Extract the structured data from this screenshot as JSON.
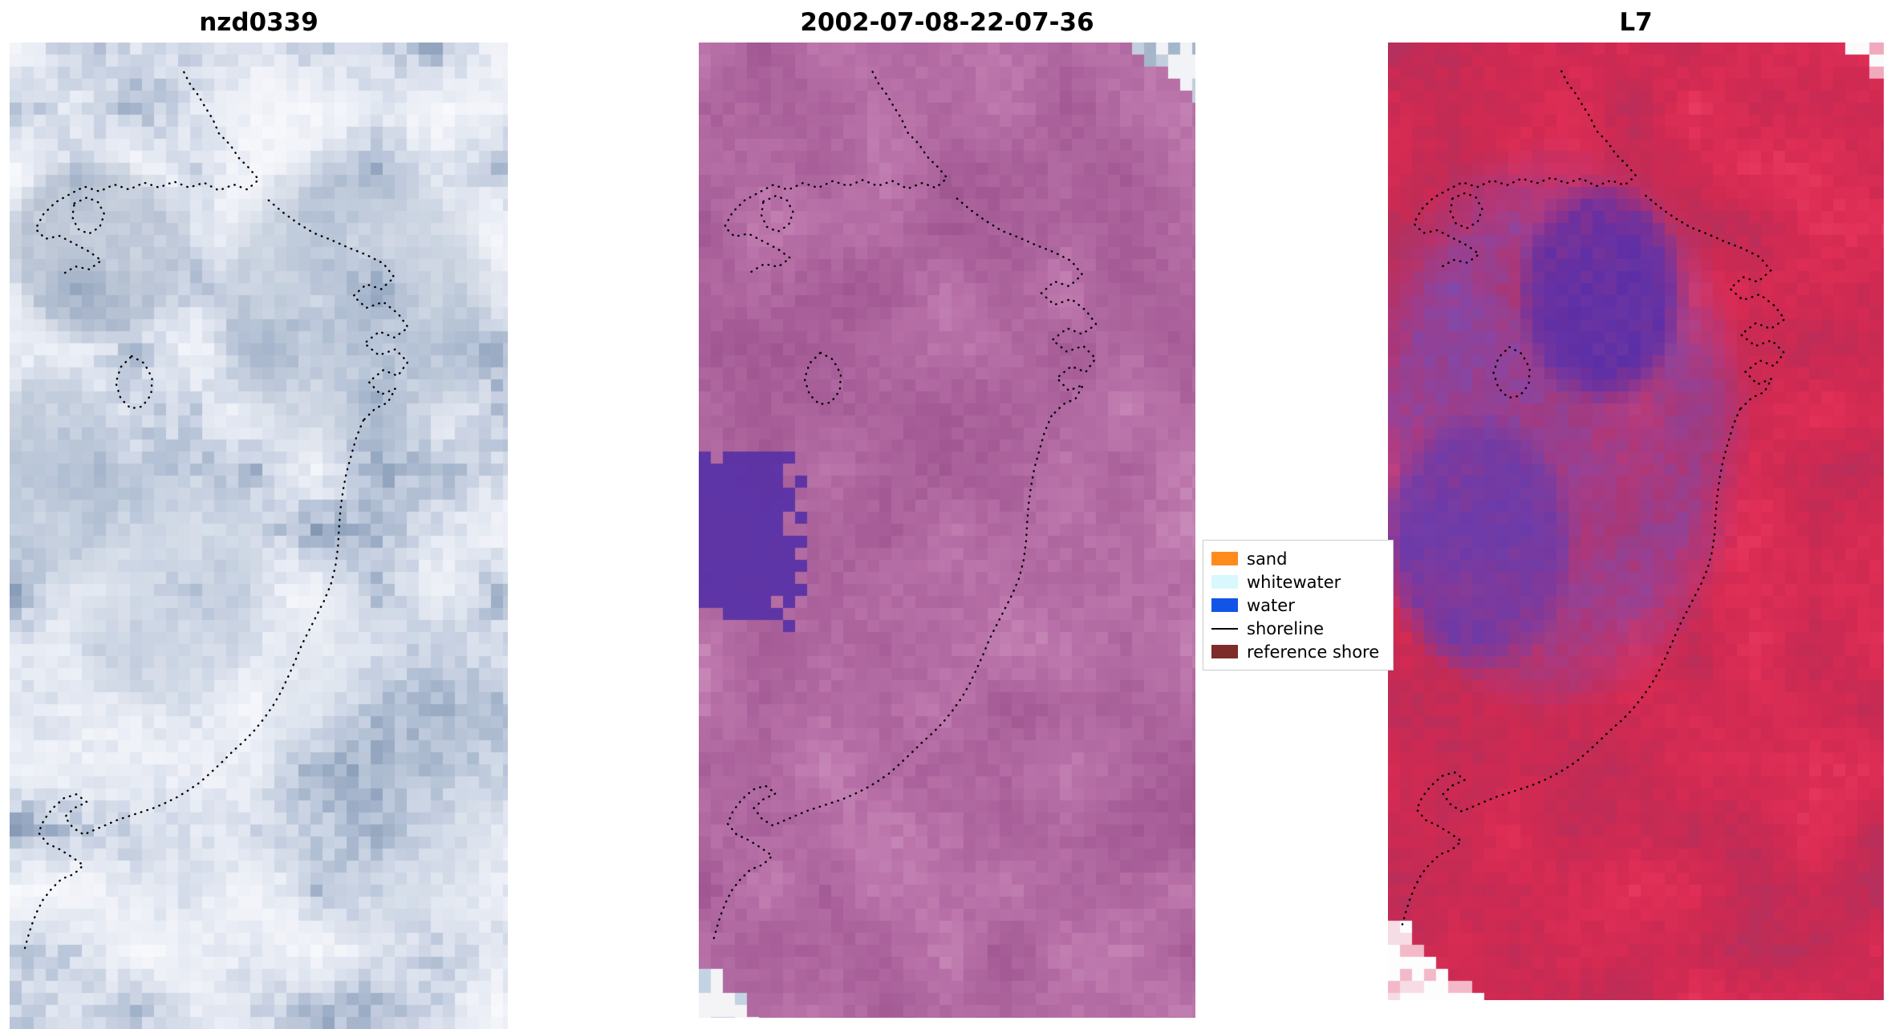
{
  "figure": {
    "background": "#ffffff"
  },
  "chart_data": [
    {
      "type": "heatmap",
      "subtype": "satellite-image",
      "title": "nzd0339",
      "description": "True-colour pixelated satellite tile: pale cloud and sand tones with blue-grey water patches, dotted detected shoreline overlaid",
      "seed": 101,
      "gamma": 1.55,
      "jitter": 0.26,
      "palette": [
        "#f8f9fc",
        "#eceff6",
        "#dde3ee",
        "#c8d1e2",
        "#aebcd1",
        "#93a5bf",
        "#7b90ac"
      ],
      "features": [
        {
          "kind": "ellipse",
          "cx": 0.17,
          "cy": 0.21,
          "rx": 0.2,
          "ry": 0.1,
          "color": "#8799b3",
          "strength": 0.55,
          "mottle": 0.5
        },
        {
          "kind": "ellipse",
          "cx": 0.68,
          "cy": 0.27,
          "rx": 0.3,
          "ry": 0.17,
          "color": "#8ca0ba",
          "strength": 0.5,
          "mottle": 0.6
        },
        {
          "kind": "ellipse",
          "cx": 0.08,
          "cy": 0.44,
          "rx": 0.16,
          "ry": 0.12,
          "color": "#8ea2bc",
          "strength": 0.5,
          "mottle": 0.5
        },
        {
          "kind": "ellipse",
          "cx": 0.3,
          "cy": 0.55,
          "rx": 0.22,
          "ry": 0.14,
          "color": "#a5b6cc",
          "strength": 0.4,
          "mottle": 0.6
        },
        {
          "kind": "ellipse",
          "cx": 0.75,
          "cy": 0.72,
          "rx": 0.28,
          "ry": 0.2,
          "color": "#b9c7d9",
          "strength": 0.35,
          "mottle": 0.6
        }
      ]
    },
    {
      "type": "heatmap",
      "subtype": "satellite-image",
      "title": "2002-07-08-22-07-36",
      "description": "Scene acquired 2002-07-08 22:07:36: mauve/purple false-colour rendering, dark purple water patch at left, white cloud-masked corners top-right and bottom-left, dotted shoreline",
      "seed": 202,
      "gamma": 1.0,
      "jitter": 0.3,
      "palette": [
        "#c78ab8",
        "#bd77ac",
        "#b26aa2",
        "#a85f99",
        "#9e5590"
      ],
      "features": [
        {
          "kind": "rect",
          "x0": 0.0,
          "y0": 0.415,
          "x1": 0.185,
          "y1": 0.575,
          "color": "#5a32a6",
          "strength": 0.95
        },
        {
          "kind": "corner",
          "corner": "tr",
          "blocks": 5,
          "color": "#f2f3f6",
          "accents": [
            "#a6b6ca",
            "#c3cede"
          ]
        },
        {
          "kind": "corner",
          "corner": "bl",
          "blocks": 5,
          "color": "#f4f4f7",
          "accents": [
            "#c3d3e3"
          ]
        }
      ]
    },
    {
      "type": "heatmap",
      "subtype": "satellite-image",
      "title": "L7",
      "description": "Landsat 7 false-colour composite: crimson land with mottled violet water body centre-left, white cloud-masked corners, dotted shoreline",
      "seed": 303,
      "gamma": 1.0,
      "jitter": 0.27,
      "palette": [
        "#e8395f",
        "#dd2d55",
        "#d02a52",
        "#c22b55",
        "#b23160"
      ],
      "features": [
        {
          "kind": "ellipse",
          "cx": 0.32,
          "cy": 0.4,
          "rx": 0.4,
          "ry": 0.3,
          "color": "#7a4cb4",
          "strength": 0.8,
          "mottle": 0.7
        },
        {
          "kind": "ellipse",
          "cx": 0.42,
          "cy": 0.26,
          "rx": 0.17,
          "ry": 0.12,
          "color": "#5a2ea8",
          "strength": 0.95,
          "mottle": 0.4
        },
        {
          "kind": "ellipse",
          "cx": 0.18,
          "cy": 0.52,
          "rx": 0.2,
          "ry": 0.14,
          "color": "#6639ac",
          "strength": 0.85,
          "mottle": 0.5
        },
        {
          "kind": "corner",
          "corner": "bl",
          "blocks": 7,
          "color": "#fdfdfd",
          "accents": [
            "#f3b9c9",
            "#f6dce4"
          ]
        },
        {
          "kind": "corner",
          "corner": "tr",
          "blocks": 3,
          "color": "#fbfbfc",
          "accents": [
            "#f0a9bd"
          ]
        }
      ]
    }
  ],
  "legend": {
    "items": [
      {
        "label": "sand",
        "swatch": "patch",
        "color": "#ff8b1d"
      },
      {
        "label": "whitewater",
        "swatch": "patch",
        "color": "#d8f8fd"
      },
      {
        "label": "water",
        "swatch": "patch",
        "color": "#1155e6"
      },
      {
        "label": "shoreline",
        "swatch": "line",
        "color": "#000000"
      },
      {
        "label": "reference shore",
        "swatch": "patch",
        "color": "#7e2b2b"
      }
    ]
  },
  "shoreline": {
    "color": "#000000",
    "style": "dotted",
    "segments": [
      [
        [
          0.35,
          0.03
        ],
        [
          0.363,
          0.043
        ],
        [
          0.378,
          0.053
        ],
        [
          0.393,
          0.066
        ],
        [
          0.408,
          0.078
        ],
        [
          0.42,
          0.092
        ],
        [
          0.443,
          0.104
        ],
        [
          0.46,
          0.117
        ],
        [
          0.48,
          0.127
        ],
        [
          0.5,
          0.139
        ],
        [
          0.477,
          0.149
        ],
        [
          0.45,
          0.144
        ],
        [
          0.42,
          0.15
        ],
        [
          0.39,
          0.142
        ],
        [
          0.36,
          0.147
        ],
        [
          0.33,
          0.141
        ],
        [
          0.3,
          0.147
        ],
        [
          0.27,
          0.142
        ],
        [
          0.24,
          0.149
        ],
        [
          0.21,
          0.144
        ],
        [
          0.18,
          0.151
        ],
        [
          0.15,
          0.146
        ],
        [
          0.12,
          0.154
        ],
        [
          0.092,
          0.162
        ],
        [
          0.068,
          0.174
        ],
        [
          0.052,
          0.189
        ],
        [
          0.072,
          0.199
        ],
        [
          0.1,
          0.196
        ],
        [
          0.13,
          0.204
        ],
        [
          0.16,
          0.212
        ],
        [
          0.184,
          0.221
        ],
        [
          0.16,
          0.23
        ],
        [
          0.132,
          0.227
        ],
        [
          0.106,
          0.235
        ]
      ],
      [
        [
          0.13,
          0.163
        ],
        [
          0.156,
          0.157
        ],
        [
          0.178,
          0.162
        ],
        [
          0.19,
          0.174
        ],
        [
          0.181,
          0.187
        ],
        [
          0.159,
          0.194
        ],
        [
          0.137,
          0.189
        ],
        [
          0.126,
          0.177
        ],
        [
          0.13,
          0.163
        ]
      ],
      [
        [
          0.52,
          0.16
        ],
        [
          0.548,
          0.172
        ],
        [
          0.578,
          0.183
        ],
        [
          0.61,
          0.193
        ],
        [
          0.645,
          0.2
        ],
        [
          0.68,
          0.208
        ],
        [
          0.715,
          0.215
        ],
        [
          0.75,
          0.224
        ],
        [
          0.772,
          0.238
        ],
        [
          0.746,
          0.25
        ],
        [
          0.716,
          0.245
        ],
        [
          0.69,
          0.257
        ],
        [
          0.716,
          0.269
        ],
        [
          0.75,
          0.263
        ],
        [
          0.78,
          0.275
        ],
        [
          0.8,
          0.289
        ],
        [
          0.772,
          0.299
        ],
        [
          0.742,
          0.293
        ],
        [
          0.712,
          0.305
        ],
        [
          0.741,
          0.317
        ],
        [
          0.774,
          0.311
        ],
        [
          0.799,
          0.324
        ],
        [
          0.779,
          0.338
        ],
        [
          0.75,
          0.332
        ],
        [
          0.721,
          0.344
        ],
        [
          0.745,
          0.357
        ],
        [
          0.774,
          0.351
        ],
        [
          0.759,
          0.365
        ],
        [
          0.734,
          0.371
        ],
        [
          0.71,
          0.383
        ]
      ],
      [
        [
          0.245,
          0.318
        ],
        [
          0.27,
          0.325
        ],
        [
          0.286,
          0.34
        ],
        [
          0.284,
          0.357
        ],
        [
          0.266,
          0.369
        ],
        [
          0.243,
          0.371
        ],
        [
          0.223,
          0.361
        ],
        [
          0.213,
          0.345
        ],
        [
          0.223,
          0.329
        ],
        [
          0.245,
          0.318
        ]
      ],
      [
        [
          0.71,
          0.383
        ],
        [
          0.696,
          0.4
        ],
        [
          0.686,
          0.418
        ],
        [
          0.676,
          0.436
        ],
        [
          0.669,
          0.455
        ],
        [
          0.664,
          0.474
        ],
        [
          0.661,
          0.493
        ],
        [
          0.659,
          0.512
        ],
        [
          0.654,
          0.531
        ],
        [
          0.645,
          0.549
        ],
        [
          0.631,
          0.566
        ],
        [
          0.616,
          0.581
        ],
        [
          0.601,
          0.596
        ],
        [
          0.586,
          0.611
        ],
        [
          0.573,
          0.627
        ],
        [
          0.559,
          0.643
        ],
        [
          0.545,
          0.658
        ],
        [
          0.529,
          0.672
        ],
        [
          0.511,
          0.685
        ],
        [
          0.492,
          0.697
        ],
        [
          0.471,
          0.708
        ],
        [
          0.449,
          0.718
        ],
        [
          0.427,
          0.729
        ],
        [
          0.404,
          0.74
        ],
        [
          0.382,
          0.75
        ],
        [
          0.359,
          0.758
        ],
        [
          0.336,
          0.765
        ],
        [
          0.312,
          0.771
        ],
        [
          0.289,
          0.776
        ],
        [
          0.265,
          0.78
        ],
        [
          0.241,
          0.784
        ],
        [
          0.217,
          0.788
        ],
        [
          0.194,
          0.793
        ],
        [
          0.171,
          0.798
        ],
        [
          0.149,
          0.803
        ],
        [
          0.127,
          0.796
        ],
        [
          0.111,
          0.785
        ],
        [
          0.13,
          0.776
        ],
        [
          0.155,
          0.77
        ],
        [
          0.134,
          0.762
        ],
        [
          0.109,
          0.766
        ],
        [
          0.087,
          0.776
        ],
        [
          0.069,
          0.788
        ],
        [
          0.058,
          0.801
        ],
        [
          0.076,
          0.812
        ],
        [
          0.101,
          0.818
        ],
        [
          0.126,
          0.826
        ],
        [
          0.148,
          0.834
        ],
        [
          0.129,
          0.843
        ],
        [
          0.104,
          0.848
        ],
        [
          0.084,
          0.858
        ],
        [
          0.067,
          0.869
        ],
        [
          0.054,
          0.882
        ],
        [
          0.044,
          0.895
        ],
        [
          0.036,
          0.908
        ],
        [
          0.029,
          0.921
        ]
      ]
    ]
  }
}
